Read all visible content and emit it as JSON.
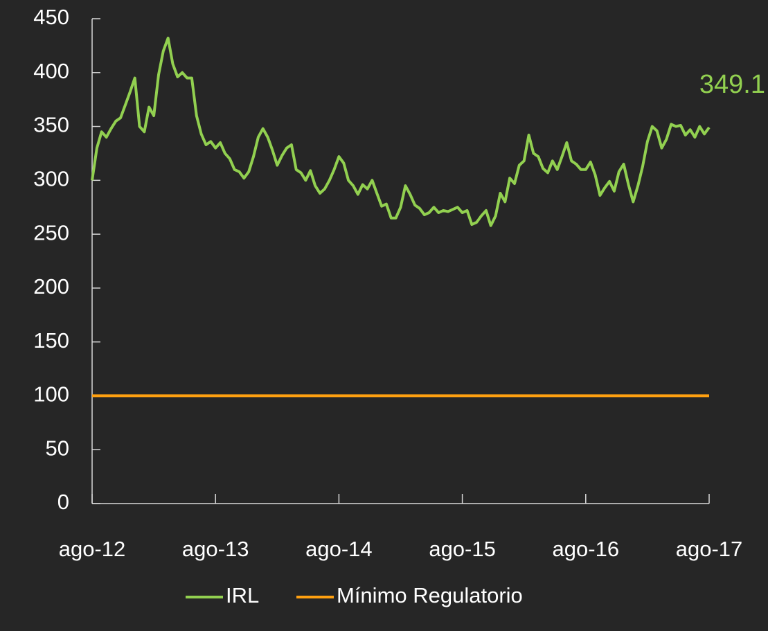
{
  "chart_data": {
    "type": "line",
    "categories": [
      "ago-12",
      null,
      null,
      null,
      null,
      null,
      null,
      null,
      null,
      null,
      null,
      null,
      null,
      null,
      null,
      null,
      null,
      null,
      null,
      null,
      null,
      null,
      null,
      null,
      null,
      null,
      "ago-13",
      null,
      null,
      null,
      null,
      null,
      null,
      null,
      null,
      null,
      null,
      null,
      null,
      null,
      null,
      null,
      null,
      null,
      null,
      null,
      null,
      null,
      null,
      null,
      null,
      null,
      "ago-14",
      null,
      null,
      null,
      null,
      null,
      null,
      null,
      null,
      null,
      null,
      null,
      null,
      null,
      null,
      null,
      null,
      null,
      null,
      null,
      null,
      null,
      null,
      null,
      null,
      null,
      "ago-15",
      null,
      null,
      null,
      null,
      null,
      null,
      null,
      null,
      null,
      null,
      null,
      null,
      null,
      null,
      null,
      null,
      null,
      null,
      null,
      null,
      null,
      null,
      null,
      null,
      null,
      "ago-16",
      null,
      null,
      null,
      null,
      null,
      null,
      null,
      null,
      null,
      null,
      null,
      null,
      null,
      null,
      null,
      null,
      null,
      null,
      null,
      null,
      null,
      null,
      null,
      null,
      null,
      "ago-17"
    ],
    "series": [
      {
        "name": "IRL",
        "color": "#92d050",
        "values": [
          300,
          330,
          345,
          340,
          348,
          355,
          358,
          370,
          382,
          395,
          350,
          345,
          368,
          360,
          398,
          420,
          432,
          408,
          396,
          400,
          395,
          395,
          360,
          343,
          333,
          336,
          330,
          335,
          325,
          320,
          310,
          308,
          302,
          308,
          322,
          340,
          348,
          340,
          328,
          314,
          323,
          330,
          333,
          310,
          307,
          300,
          309,
          295,
          288,
          292,
          300,
          310,
          322,
          316,
          300,
          295,
          287,
          296,
          292,
          300,
          288,
          276,
          278,
          265,
          265,
          275,
          295,
          287,
          277,
          274,
          268,
          270,
          275,
          270,
          272,
          271,
          273,
          275,
          270,
          272,
          259,
          261,
          267,
          272,
          258,
          267,
          288,
          280,
          302,
          297,
          314,
          318,
          342,
          325,
          322,
          311,
          307,
          318,
          310,
          322,
          335,
          318,
          315,
          310,
          310,
          317,
          305,
          286,
          293,
          299,
          290,
          308,
          315,
          296,
          280,
          295,
          313,
          336,
          350,
          346,
          330,
          338,
          352,
          350,
          351,
          342,
          347,
          340,
          350,
          343,
          349.1
        ]
      },
      {
        "name": "Mínimo Regulatorio",
        "color": "#ffa010",
        "values": [
          100,
          100,
          100,
          100,
          100,
          100,
          100,
          100,
          100,
          100,
          100,
          100,
          100,
          100,
          100,
          100,
          100,
          100,
          100,
          100,
          100,
          100,
          100,
          100,
          100,
          100,
          100,
          100,
          100,
          100,
          100,
          100,
          100,
          100,
          100,
          100,
          100,
          100,
          100,
          100,
          100,
          100,
          100,
          100,
          100,
          100,
          100,
          100,
          100,
          100,
          100,
          100,
          100,
          100,
          100,
          100,
          100,
          100,
          100,
          100,
          100,
          100,
          100,
          100,
          100,
          100,
          100,
          100,
          100,
          100,
          100,
          100,
          100,
          100,
          100,
          100,
          100,
          100,
          100,
          100,
          100,
          100,
          100,
          100,
          100,
          100,
          100,
          100,
          100,
          100,
          100,
          100,
          100,
          100,
          100,
          100,
          100,
          100,
          100,
          100,
          100,
          100,
          100,
          100,
          100,
          100,
          100,
          100,
          100,
          100,
          100,
          100,
          100,
          100,
          100,
          100,
          100,
          100,
          100,
          100,
          100,
          100,
          100,
          100,
          100,
          100,
          100,
          100,
          100,
          100,
          100
        ]
      }
    ],
    "ylim": [
      0,
      450
    ],
    "yticks": [
      0,
      50,
      100,
      150,
      200,
      250,
      300,
      350,
      400,
      450
    ],
    "grid": false,
    "legend": "bottom"
  }
}
